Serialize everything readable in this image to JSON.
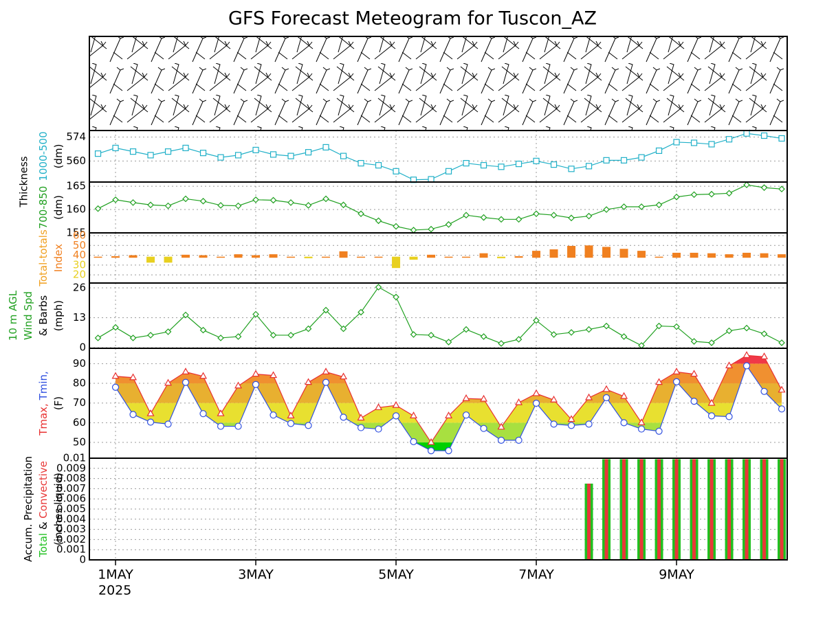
{
  "title": "GFS Forecast Meteogram for Tuscon_AZ",
  "shared_label": {
    "text": "Thickness",
    "color": "#000000"
  },
  "time": {
    "x": [
      -0.25,
      0,
      0.25,
      0.5,
      0.75,
      1,
      1.25,
      1.5,
      1.75,
      2,
      2.25,
      2.5,
      2.75,
      3,
      3.25,
      3.5,
      3.75,
      4,
      4.25,
      4.5,
      4.75,
      5,
      5.25,
      5.5,
      5.75,
      6,
      6.25,
      6.5,
      6.75,
      7,
      7.25,
      7.5,
      7.75,
      8,
      8.25,
      8.5,
      8.75,
      9,
      9.25,
      9.5
    ],
    "xlim": [
      -0.373,
      9.578
    ],
    "xticks": [
      {
        "value": 0,
        "label": "1MAY"
      },
      {
        "value": 2,
        "label": "3MAY"
      },
      {
        "value": 4,
        "label": "5MAY"
      },
      {
        "value": 6,
        "label": "7MAY"
      },
      {
        "value": 8,
        "label": "9MAY"
      }
    ],
    "year": "2025"
  },
  "chart_data": [
    {
      "type": "line",
      "marker": "square",
      "grid": true,
      "ylabel": [
        [
          {
            "text": "1000-500",
            "color": "#20b0c8"
          }
        ],
        [
          {
            "text": "(dm)",
            "color": "#000000"
          }
        ]
      ],
      "ylim": [
        547.7,
        577.8
      ],
      "yticks": [
        560,
        574
      ],
      "series": [
        {
          "name": "1000-500",
          "color": "#20b0c8",
          "values": [
            564.3,
            567.6,
            565.5,
            563.4,
            565.5,
            567.6,
            564.7,
            562.1,
            563.4,
            566.4,
            563.8,
            562.9,
            565.1,
            568,
            562.9,
            558.7,
            557.5,
            554,
            549,
            549.3,
            554,
            558.7,
            557.5,
            556.6,
            558.3,
            560,
            557.9,
            555.4,
            557,
            560.4,
            560.4,
            562.1,
            566,
            571,
            570.6,
            569.8,
            572.7,
            576.1,
            574.8,
            573.2
          ]
        }
      ]
    },
    {
      "type": "line",
      "marker": "diamond",
      "grid": true,
      "ylabel": [
        [
          {
            "text": "700-850",
            "color": "#20a020"
          }
        ],
        [
          {
            "text": "(dm)",
            "color": "#000000"
          }
        ]
      ],
      "ylim": [
        155,
        165.9
      ],
      "yticks": [
        155,
        160,
        165
      ],
      "series": [
        {
          "name": "700-850",
          "color": "#20a020",
          "values": [
            160.2,
            162.1,
            161.5,
            161,
            160.8,
            162.3,
            161.8,
            160.9,
            160.8,
            162.1,
            162,
            161.5,
            160.9,
            162.3,
            161,
            159.1,
            157.6,
            156.4,
            155.6,
            155.8,
            156.8,
            158.8,
            158.3,
            157.9,
            157.9,
            159.1,
            158.8,
            158.2,
            158.6,
            160,
            160.6,
            160.6,
            161,
            162.7,
            163.2,
            163.3,
            163.5,
            165.3,
            164.7,
            164.4
          ]
        }
      ]
    },
    {
      "type": "base_bar",
      "grid": true,
      "base": 38,
      "color_above": "#f08020",
      "color_below": "#e8d020",
      "ylabel": [
        [
          {
            "text": "Total-totals",
            "color": "#f0a020"
          }
        ],
        [
          {
            "text": "Index",
            "color": "#f08020"
          }
        ]
      ],
      "ylim": [
        11.7,
        62.8
      ],
      "yticks": [
        20,
        30,
        40,
        50,
        60
      ],
      "series": [
        {
          "name": "Total-totals",
          "color": "#f08020",
          "values": [
            38,
            38.5,
            39.5,
            33,
            33,
            40,
            39.5,
            38,
            40.5,
            39.5,
            40.5,
            38,
            37.5,
            38,
            43.5,
            38,
            38,
            27.5,
            36,
            40,
            38,
            38,
            41.5,
            37.5,
            38.5,
            44,
            45.5,
            49,
            49.5,
            48,
            46,
            44,
            38,
            42,
            42,
            41.5,
            40.5,
            42,
            41.5,
            40.5
          ]
        }
      ]
    },
    {
      "type": "line",
      "marker": "diamond",
      "grid": true,
      "ylabel": [
        [
          {
            "text": "10 m AGL",
            "color": "#20a020"
          }
        ],
        [
          {
            "text": "Wind Spd",
            "color": "#20a020"
          }
        ],
        [
          {
            "text": "& Barbs",
            "color": "#000000"
          }
        ],
        [
          {
            "text": "(mph)",
            "color": "#000000"
          }
        ]
      ],
      "ylim": [
        -0.3,
        28.1
      ],
      "yticks": [
        0,
        13,
        26
      ],
      "series": [
        {
          "name": "Wind Spd",
          "color": "#20a020",
          "values": [
            4.2,
            8.8,
            4.2,
            5.4,
            6.9,
            14.2,
            7.6,
            4.2,
            4.8,
            14.5,
            5.4,
            5.4,
            8.2,
            16.3,
            8.2,
            15.4,
            26.3,
            22,
            5.7,
            5.4,
            2.4,
            7.9,
            4.8,
            1.8,
            3.6,
            11.8,
            5.7,
            6.6,
            7.9,
            9.4,
            4.8,
            0.9,
            9.4,
            9.1,
            2.7,
            2.1,
            7.3,
            8.5,
            6,
            2.1
          ]
        }
      ]
    },
    {
      "type": "range",
      "grid": true,
      "ylabel": [
        [
          {
            "text": "Tmax,",
            "color": "#e83030"
          },
          {
            "text": "Tmin,",
            "color": "#3050e0"
          }
        ],
        [
          {
            "text": "(F)",
            "color": "#000000"
          }
        ]
      ],
      "ylim": [
        42,
        97.8
      ],
      "yticks": [
        50,
        60,
        70,
        80,
        90
      ],
      "bands": [
        {
          "from": 40,
          "to": 50,
          "color": "#00d000"
        },
        {
          "from": 50,
          "to": 60,
          "color": "#a8e040"
        },
        {
          "from": 60,
          "to": 70,
          "color": "#e8e030"
        },
        {
          "from": 70,
          "to": 80,
          "color": "#e8b030"
        },
        {
          "from": 80,
          "to": 90,
          "color": "#f09030"
        },
        {
          "from": 90,
          "to": 100,
          "color": "#f03848"
        }
      ],
      "series": [
        {
          "name": "Tmax",
          "color": "#e83030",
          "marker": "triangle",
          "values": [
            null,
            83.6,
            82.9,
            64.6,
            80.1,
            85.8,
            83.6,
            64.6,
            78.7,
            84.7,
            84,
            63.5,
            80.5,
            85.8,
            83.3,
            62.4,
            67.7,
            68.8,
            63.5,
            50,
            63.5,
            72.3,
            72,
            57.8,
            70.2,
            74.8,
            71.6,
            61.7,
            72.7,
            76.9,
            73.4,
            60,
            80.5,
            85.8,
            84.7,
            69.9,
            88.9,
            94.2,
            93.5,
            76.6
          ]
        },
        {
          "name": "Tmin",
          "color": "#3050e0",
          "marker": "circle",
          "values": [
            null,
            78,
            64.2,
            60.3,
            59.3,
            80.5,
            64.6,
            58.2,
            58.2,
            79.4,
            63.9,
            59.6,
            58.6,
            80.5,
            62.8,
            57.5,
            56.8,
            63.5,
            50.4,
            45.8,
            45.8,
            63.9,
            57.1,
            51.1,
            51.1,
            69.9,
            59.3,
            58.6,
            59.3,
            72.7,
            60,
            56.8,
            55.7,
            80.8,
            70.9,
            63.5,
            63.1,
            88.9,
            75.9,
            67
          ]
        }
      ]
    },
    {
      "type": "bar",
      "grid": true,
      "ylabel": [
        [
          {
            "text": "Accum. Precipitation",
            "color": "#000000"
          }
        ],
        [
          {
            "text": "Total",
            "color": "#20c020"
          },
          {
            "text": "&",
            "color": "#000000"
          },
          {
            "text": "Convective",
            "color": "#e83838"
          }
        ],
        [
          {
            "text": "(inches liquid)",
            "color": "#000000"
          }
        ]
      ],
      "ylim": [
        0,
        0.01
      ],
      "yticks": [
        0,
        0.001,
        0.002,
        0.003,
        0.004,
        0.005,
        0.006,
        0.007,
        0.008,
        0.009,
        0.01
      ],
      "series": [
        {
          "name": "Total",
          "color": "#20c020",
          "values": [
            null,
            null,
            null,
            null,
            null,
            null,
            null,
            null,
            null,
            null,
            null,
            null,
            null,
            null,
            null,
            null,
            null,
            null,
            null,
            null,
            null,
            null,
            null,
            null,
            null,
            null,
            null,
            null,
            0.0075,
            0.0099,
            0.0099,
            0.0099,
            0.0099,
            0.0099,
            0.0099,
            0.0099,
            0.0099,
            0.0099,
            0.0099,
            0.0099
          ]
        },
        {
          "name": "Convective",
          "color": "#e83838",
          "values": [
            null,
            null,
            null,
            null,
            null,
            null,
            null,
            null,
            null,
            null,
            null,
            null,
            null,
            null,
            null,
            null,
            null,
            null,
            null,
            null,
            null,
            null,
            null,
            null,
            null,
            null,
            null,
            null,
            0.0075,
            0.0099,
            0.0099,
            0.0099,
            0.0099,
            0.0099,
            0.0099,
            0.0099,
            0.0099,
            0.0099,
            0.0099,
            0.0099
          ]
        }
      ]
    }
  ]
}
